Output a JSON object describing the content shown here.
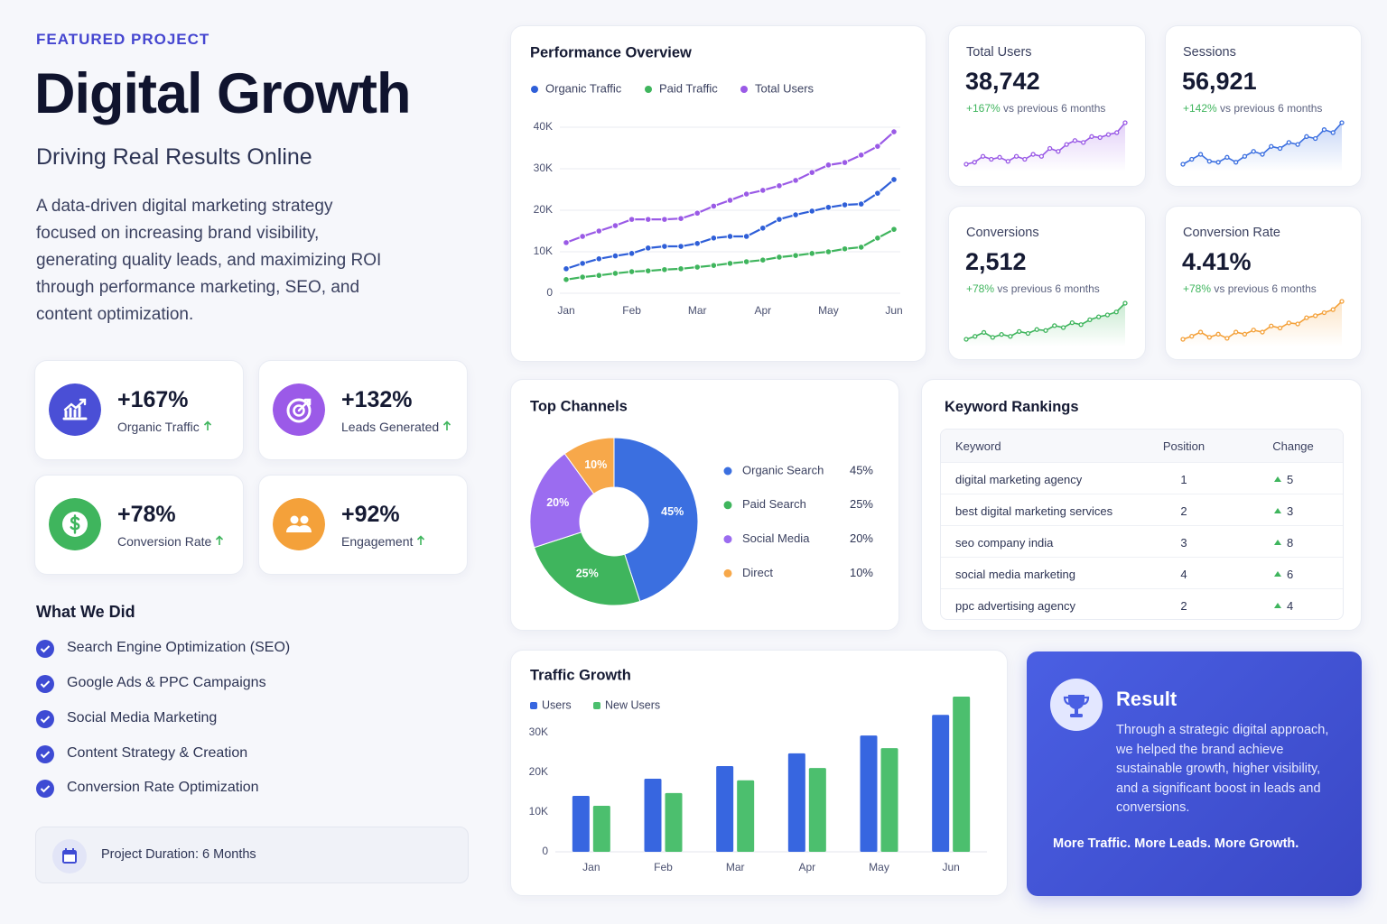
{
  "header": {
    "eyebrow": "FEATURED PROJECT",
    "title": "Digital Growth",
    "subtitle": "Driving Real Results Online",
    "description": "A data-driven digital marketing strategy focused on increasing brand visibility, generating quality leads, and maximizing ROI through performance marketing, SEO, and content optimization."
  },
  "highlights": [
    {
      "value": "+167%",
      "label": "Organic Traffic"
    },
    {
      "value": "+132%",
      "label": "Leads Generated"
    },
    {
      "value": "+78%",
      "label": "Conversion Rate"
    },
    {
      "value": "+92%",
      "label": "Engagement"
    }
  ],
  "what_we_did": {
    "title": "What We Did",
    "items": [
      "Search Engine Optimization (SEO)",
      "Google Ads & PPC Campaigns",
      "Social Media Marketing",
      "Content Strategy & Creation",
      "Conversion Rate Optimization"
    ]
  },
  "duration": "Project Duration: 6 Months",
  "stats": [
    {
      "label": "Total Users",
      "value": "38,742",
      "change": "+167%",
      "note": "vs previous 6 months"
    },
    {
      "label": "Sessions",
      "value": "56,921",
      "change": "+142%",
      "note": "vs previous 6 months"
    },
    {
      "label": "Conversions",
      "value": "2,512",
      "change": "+78%",
      "note": "vs previous 6 months"
    },
    {
      "label": "Conversion Rate",
      "value": "4.41%",
      "change": "+78%",
      "note": "vs previous 6 months"
    }
  ],
  "keywords": {
    "title": "Keyword Rankings",
    "columns": [
      "Keyword",
      "Position",
      "Change"
    ],
    "rows": [
      [
        "digital marketing agency",
        1,
        5
      ],
      [
        "best digital marketing services",
        2,
        3
      ],
      [
        "seo company india",
        3,
        8
      ],
      [
        "social media marketing",
        4,
        6
      ],
      [
        "ppc advertising agency",
        2,
        4
      ]
    ]
  },
  "result": {
    "title": "Result",
    "body": "Through a strategic digital approach, we helped the brand achieve sustainable growth, higher visibility, and a significant boost in leads and conversions.",
    "tagline": "More Traffic. More Leads. More Growth."
  },
  "chart_data": [
    {
      "type": "line",
      "title": "Performance Overview",
      "categories": [
        "Jan",
        null,
        null,
        null,
        "Feb",
        null,
        null,
        null,
        "Mar",
        null,
        null,
        null,
        "Apr",
        null,
        null,
        null,
        "May",
        null,
        null,
        null,
        "Jun"
      ],
      "series": [
        {
          "name": "Organic Traffic",
          "color": "#2f5fd8",
          "values": [
            5900,
            7200,
            8300,
            9000,
            9600,
            10900,
            11300,
            11300,
            12000,
            13300,
            13700,
            13700,
            15700,
            17800,
            18900,
            19800,
            20700,
            21300,
            21500,
            24100,
            27400
          ]
        },
        {
          "name": "Paid Traffic",
          "color": "#3fb55d",
          "values": [
            3300,
            3900,
            4300,
            4800,
            5200,
            5400,
            5700,
            5900,
            6300,
            6700,
            7200,
            7600,
            8000,
            8700,
            9100,
            9600,
            10000,
            10700,
            11100,
            13300,
            15400
          ]
        },
        {
          "name": "Total Users",
          "color": "#9a5ae6",
          "values": [
            12200,
            13700,
            15000,
            16300,
            17800,
            17800,
            17800,
            18000,
            19300,
            21000,
            22400,
            23900,
            24800,
            25900,
            27200,
            29100,
            30900,
            31500,
            33300,
            35400,
            38900
          ]
        }
      ],
      "ylim": [
        0,
        40000
      ],
      "yticks": [
        0,
        {
          "value": 10000,
          "label": "10K"
        },
        {
          "value": 20000,
          "label": "20K"
        },
        {
          "value": 30000,
          "label": "30K"
        },
        {
          "value": 40000,
          "label": "40K"
        }
      ],
      "grid": true
    },
    {
      "type": "pie",
      "title": "Top Channels",
      "categories": [
        "Organic Search",
        "Paid Search",
        "Social Media",
        "Direct"
      ],
      "values": [
        45,
        25,
        20,
        10
      ],
      "value_labels": [
        "45%",
        "25%",
        "20%",
        "10%"
      ],
      "colors": [
        "#3b6fe0",
        "#3fb55d",
        "#9b6cf0",
        "#f7a84a"
      ],
      "donut": true
    },
    {
      "type": "bar",
      "title": "Traffic Growth",
      "categories": [
        "Jan",
        "Feb",
        "Mar",
        "Apr",
        "May",
        "Jun"
      ],
      "series": [
        {
          "name": "Users",
          "color": "#3766e0",
          "values": [
            14100,
            18400,
            21600,
            24800,
            29300,
            34500
          ]
        },
        {
          "name": "New Users",
          "color": "#4cbf6e",
          "values": [
            11600,
            14800,
            18000,
            21100,
            26100,
            39100
          ]
        }
      ],
      "ylim": [
        0,
        40000
      ],
      "yticks": [
        0,
        {
          "value": 10000,
          "label": "10K"
        },
        {
          "value": 20000,
          "label": "20K"
        },
        {
          "value": 30000,
          "label": "30K"
        }
      ]
    },
    {
      "type": "line",
      "color": "#9a5ae6",
      "values": [
        20,
        22,
        28,
        25,
        27,
        23,
        28,
        25,
        30,
        28,
        36,
        33,
        40,
        44,
        42,
        48,
        47,
        50,
        52,
        62
      ]
    },
    {
      "type": "line",
      "color": "#3b6fe0",
      "values": [
        20,
        25,
        30,
        23,
        22,
        27,
        22,
        28,
        33,
        30,
        38,
        36,
        42,
        40,
        48,
        46,
        55,
        52,
        62
      ]
    },
    {
      "type": "line",
      "color": "#3fb55d",
      "values": [
        25,
        28,
        32,
        27,
        30,
        28,
        33,
        31,
        35,
        34,
        39,
        37,
        42,
        40,
        45,
        48,
        50,
        53,
        62
      ]
    },
    {
      "type": "line",
      "color": "#f4a13a",
      "values": [
        27,
        30,
        34,
        29,
        32,
        28,
        34,
        32,
        36,
        34,
        40,
        38,
        43,
        42,
        48,
        50,
        53,
        56,
        64
      ]
    }
  ]
}
